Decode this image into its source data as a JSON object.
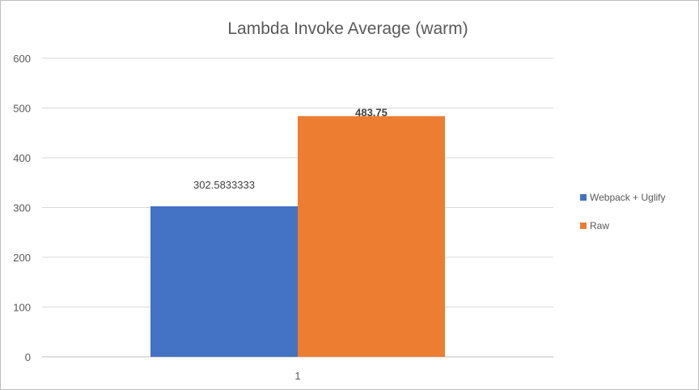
{
  "chart_data": {
    "type": "bar",
    "title": "Lambda Invoke Average (warm)",
    "categories": [
      "1"
    ],
    "series": [
      {
        "name": "Webpack + Uglify",
        "values": [
          302.5833333
        ],
        "label": "302.5833333",
        "color": "#4472C4"
      },
      {
        "name": "Raw",
        "values": [
          483.75
        ],
        "label": "483.75",
        "color": "#ED7D31"
      }
    ],
    "ylim": [
      0,
      600
    ],
    "yticks": [
      0,
      100,
      200,
      300,
      400,
      500,
      600
    ],
    "xlabel": "",
    "ylabel": "",
    "grid": true,
    "legend_position": "right"
  }
}
